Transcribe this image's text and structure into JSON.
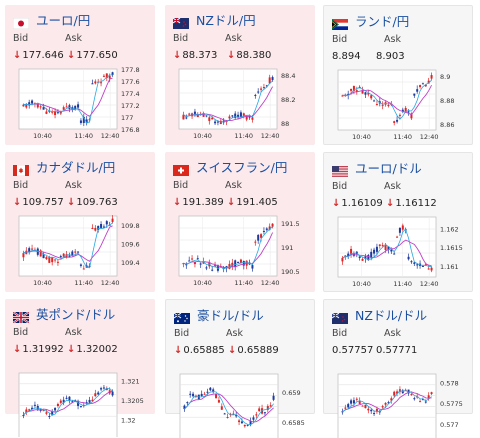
{
  "header": {
    "bid_label": "Bid",
    "ask_label": "Ask"
  },
  "cards": [
    {
      "id": "usdjpy",
      "name": "ユーロ/円",
      "flag": "flag-jp-icon",
      "bg": "pink",
      "bid": "177.646",
      "ask": "177.650",
      "bid_down": true,
      "ask_down": true,
      "chart_data": {
        "type": "candlestick",
        "x_ticks": [
          "10:40",
          "11:40",
          "12:40"
        ],
        "y_ticks": [
          "177.8",
          "177.6",
          "177.4",
          "177.2",
          "177",
          "176.8"
        ],
        "ylim": [
          176.8,
          177.8
        ]
      }
    },
    {
      "id": "nzdjpy",
      "name": "NZドル/円",
      "flag": "flag-nz-icon",
      "bg": "pink",
      "bid": "88.373",
      "ask": "88.380",
      "bid_down": true,
      "ask_down": true,
      "chart_data": {
        "type": "candlestick",
        "x_ticks": [
          "10:40",
          "11:40",
          "12:40"
        ],
        "y_ticks": [
          "88.4",
          "88.2",
          "88"
        ],
        "ylim": [
          87.95,
          88.45
        ]
      }
    },
    {
      "id": "zarjpy",
      "name": "ランド/円",
      "flag": "flag-za-icon",
      "bg": "white",
      "bid": "8.894",
      "ask": "8.903",
      "bid_down": false,
      "ask_down": false,
      "chart_data": {
        "type": "candlestick",
        "x_ticks": [
          "10:40",
          "11:40",
          "12:40"
        ],
        "y_ticks": [
          "8.9",
          "8.88",
          "8.86"
        ],
        "ylim": [
          8.855,
          8.905
        ]
      }
    },
    {
      "id": "cadjpy",
      "name": "カナダドル/円",
      "flag": "flag-ca-icon",
      "bg": "pink",
      "bid": "109.757",
      "ask": "109.763",
      "bid_down": true,
      "ask_down": true,
      "chart_data": {
        "type": "candlestick",
        "x_ticks": [
          "10:40",
          "11:40",
          "12:40"
        ],
        "y_ticks": [
          "109.8",
          "109.6",
          "109.4"
        ],
        "ylim": [
          109.25,
          109.9
        ]
      }
    },
    {
      "id": "chfjpy",
      "name": "スイスフラン/円",
      "flag": "flag-ch-icon",
      "bg": "pink",
      "bid": "191.389",
      "ask": "191.405",
      "bid_down": true,
      "ask_down": true,
      "chart_data": {
        "type": "candlestick",
        "x_ticks": [
          "10:40",
          "11:40",
          "12:40"
        ],
        "y_ticks": [
          "191.5",
          "191",
          "190.5"
        ],
        "ylim": [
          190.4,
          191.65
        ]
      }
    },
    {
      "id": "eurusd",
      "name": "ユーロ/ドル",
      "flag": "flag-us-icon",
      "bg": "white",
      "bid": "1.16109",
      "ask": "1.16112",
      "bid_down": true,
      "ask_down": true,
      "chart_data": {
        "type": "candlestick",
        "x_ticks": [
          "10:40",
          "11:40",
          "12:40"
        ],
        "y_ticks": [
          "1.162",
          "1.1615",
          "1.161"
        ],
        "ylim": [
          1.1607,
          1.1623
        ]
      }
    },
    {
      "id": "gbpusd",
      "name": "英ポンド/ドル",
      "flag": "flag-uk-icon",
      "bg": "pink",
      "bid": "1.31992",
      "ask": "1.32002",
      "bid_down": true,
      "ask_down": true,
      "chart_data": {
        "type": "candlestick",
        "x_ticks": [],
        "y_ticks": [
          "1.321",
          "1.3205",
          "1.32"
        ],
        "ylim": [
          1.3198,
          1.3212
        ]
      }
    },
    {
      "id": "audusd",
      "name": "豪ドル/ドル",
      "flag": "flag-au-icon",
      "bg": "white",
      "bid": "0.65885",
      "ask": "0.65889",
      "bid_down": true,
      "ask_down": true,
      "chart_data": {
        "type": "candlestick",
        "x_ticks": [],
        "y_ticks": [
          "0.659",
          "0.6585"
        ],
        "ylim": [
          0.6584,
          0.6593
        ]
      }
    },
    {
      "id": "nzdusd",
      "name": "NZドル/ドル",
      "flag": "flag-nz-icon",
      "bg": "white",
      "bid": "0.57757",
      "ask": "0.57771",
      "bid_down": false,
      "ask_down": false,
      "chart_data": {
        "type": "candlestick",
        "x_ticks": [],
        "y_ticks": [
          "0.578",
          "0.5775",
          "0.577"
        ],
        "ylim": [
          0.5769,
          0.5782
        ]
      }
    }
  ]
}
